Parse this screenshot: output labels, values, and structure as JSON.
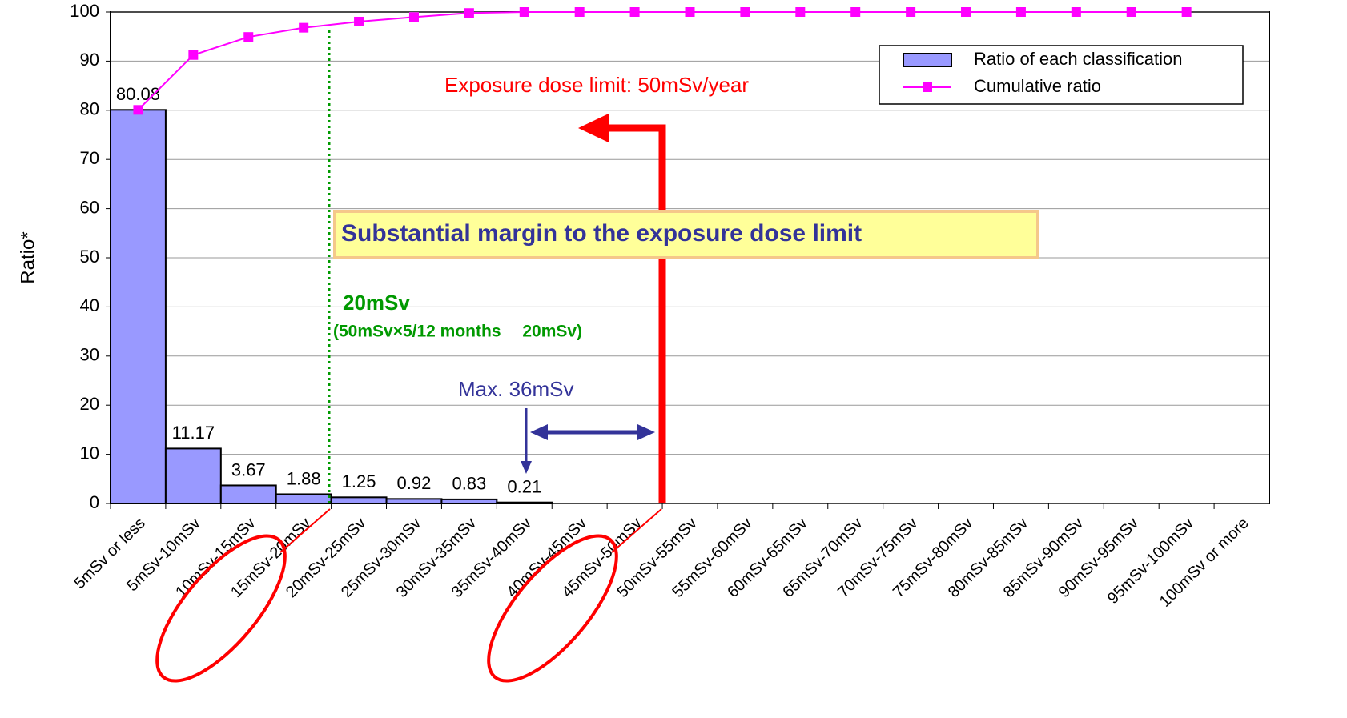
{
  "chart_data": {
    "type": "bar",
    "y_label": "Ratio*",
    "categories": [
      "5mSv or less",
      "5mSv-10mSv",
      "10mSv-15mSv",
      "15mSv-20mSv",
      "20mSv-25mSv",
      "25mSv-30mSv",
      "30mSv-35mSv",
      "35mSv-40mSv",
      "40mSv-45mSv",
      "45mSv-50mSv",
      "50mSv-55mSv",
      "55mSv-60mSv",
      "60mSv-65mSv",
      "65mSv-70mSv",
      "70mSv-75mSv",
      "75mSv-80mSv",
      "80mSv-85mSv",
      "85mSv-90mSv",
      "90mSv-95mSv",
      "95mSv-100mSv",
      "100mSv or more"
    ],
    "series": [
      {
        "name": "Ratio of each classification",
        "type": "bar",
        "color": "#9999ff",
        "values": [
          80.08,
          11.17,
          3.67,
          1.88,
          1.25,
          0.92,
          0.83,
          0.21,
          0,
          0,
          0,
          0,
          0,
          0,
          0,
          0,
          0,
          0,
          0,
          0,
          0
        ]
      },
      {
        "name": "Cumulative ratio",
        "type": "line",
        "color": "#ff00ff",
        "values": [
          80.08,
          91.25,
          94.92,
          96.8,
          98.05,
          98.97,
          99.8,
          100,
          100,
          100,
          100,
          100,
          100,
          100,
          100,
          100,
          100,
          100,
          100,
          100,
          null
        ]
      }
    ],
    "ylim": [
      0,
      100
    ],
    "yticks": [
      0,
      10,
      20,
      30,
      40,
      50,
      60,
      70,
      80,
      90,
      100
    ],
    "grid": true,
    "legend": "top-right",
    "annotations": {
      "limit": "Exposure dose limit: 50mSv/year",
      "margin": "Substantial margin to the exposure dose limit",
      "twenty": "20mSv",
      "twenty_note": "(50mSv×5/12 months　 20mSv)",
      "max": "Max. 36mSv"
    }
  }
}
